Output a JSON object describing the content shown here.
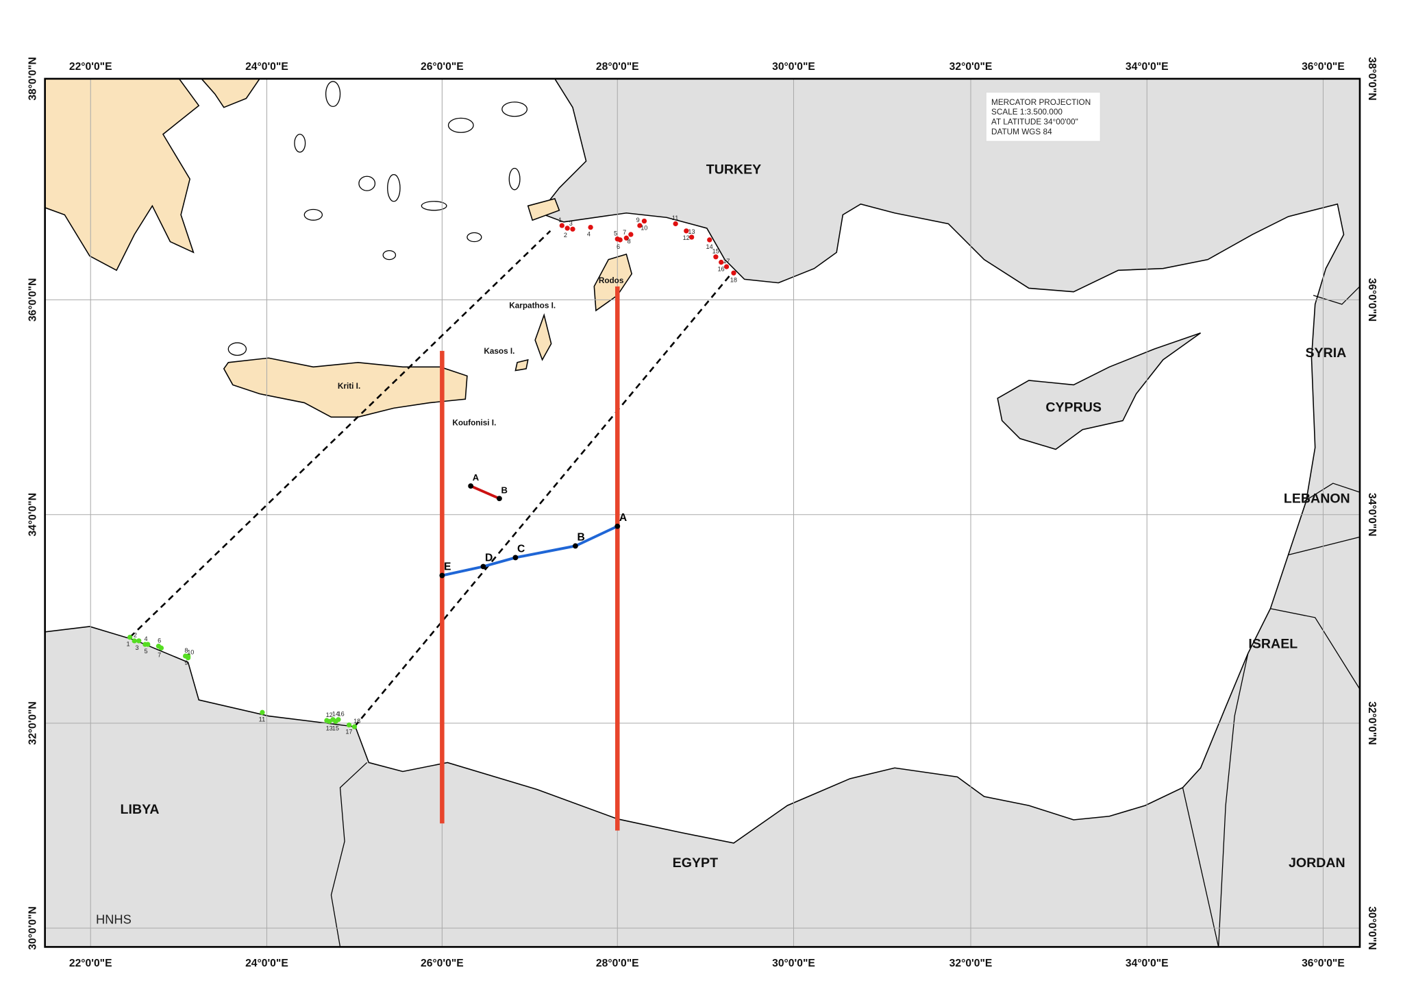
{
  "map": {
    "lon_labels": [
      "22°0'0\"E",
      "24°0'0\"E",
      "26°0'0\"E",
      "28°0'0\"E",
      "30°0'0\"E",
      "32°0'0\"E",
      "34°0'0\"E",
      "36°0'0\"E"
    ],
    "lat_labels": [
      "38°0'0\"N",
      "36°0'0\"N",
      "34°0'0\"N",
      "32°0'0\"N",
      "30°0'0\"N"
    ],
    "projection_note": [
      "MERCATOR PROJECTION",
      "SCALE 1:3.500.000",
      "AT LATITUDE 34°00'00\"",
      "DATUM WGS 84"
    ],
    "countries": [
      "TURKEY",
      "SYRIA",
      "LEBANON",
      "ISRAEL",
      "JORDAN",
      "CYPRUS",
      "EGYPT",
      "LIBYA"
    ],
    "islands": [
      "Kriti I.",
      "Karpathos I.",
      "Kasos I.",
      "Koufonisi I.",
      "Rodos"
    ],
    "median_line_points": [
      "A",
      "B",
      "C",
      "D",
      "E"
    ],
    "segment_points": [
      "A",
      "B"
    ],
    "turkey_points": [
      "1",
      "2",
      "3",
      "4",
      "5",
      "6",
      "7",
      "8",
      "9",
      "10",
      "11",
      "12",
      "13",
      "14",
      "15",
      "16",
      "17",
      "18"
    ],
    "libya_points": [
      "1",
      "2",
      "3",
      "4",
      "5",
      "6",
      "7",
      "8",
      "9",
      "10",
      "11",
      "12",
      "13",
      "14",
      "15",
      "16",
      "17",
      "18"
    ],
    "credit": "HNHS"
  }
}
